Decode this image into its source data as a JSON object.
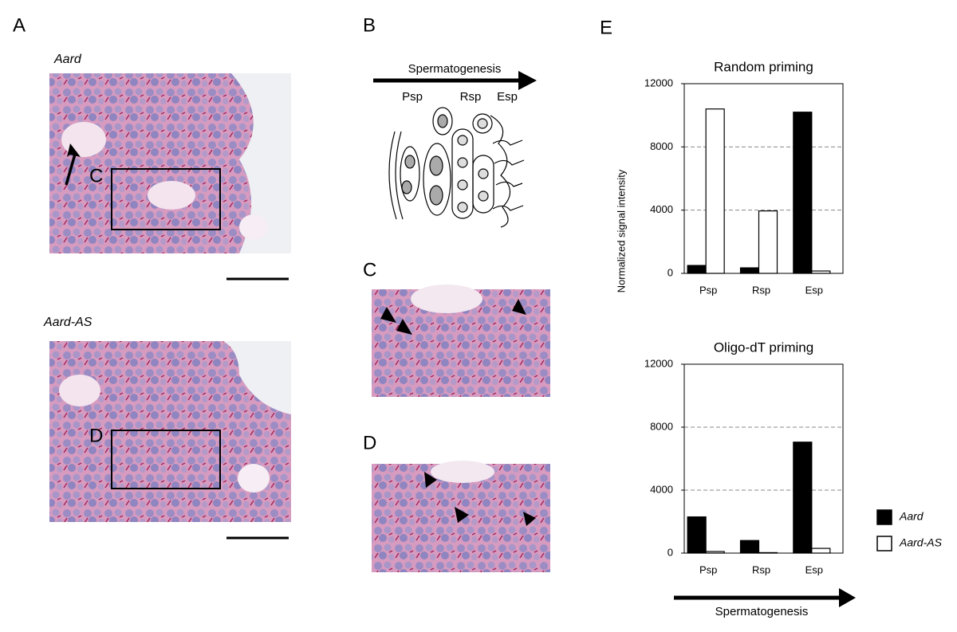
{
  "figure": {
    "panel_a": {
      "label": "A",
      "top_title": "Aard",
      "bottom_title": "Aard-AS",
      "inset_c": "C",
      "inset_d": "D"
    },
    "panel_b": {
      "label": "B",
      "arrow": "Spermatogenesis",
      "stages": [
        "Psp",
        "Rsp",
        "Esp"
      ]
    },
    "panel_c": {
      "label": "C"
    },
    "panel_d": {
      "label": "D"
    },
    "panel_e": {
      "label": "E"
    }
  },
  "chart_data": [
    {
      "type": "bar",
      "title": "Random priming",
      "ylabel": "Normalized signal intensity",
      "categories": [
        "Psp",
        "Rsp",
        "Esp"
      ],
      "series": [
        {
          "name": "Aard",
          "color": "#000000",
          "values": [
            500,
            350,
            10200
          ]
        },
        {
          "name": "Aard-AS",
          "color": "#ffffff",
          "values": [
            10400,
            3950,
            150
          ]
        }
      ],
      "ylim": [
        0,
        12000
      ],
      "yticks": [
        0,
        4000,
        8000,
        12000
      ],
      "grid": true
    },
    {
      "type": "bar",
      "title": "Oligo-dT priming",
      "annotation": "Spermatogenesis",
      "categories": [
        "Psp",
        "Rsp",
        "Esp"
      ],
      "series": [
        {
          "name": "Aard",
          "color": "#000000",
          "values": [
            2300,
            800,
            7050
          ]
        },
        {
          "name": "Aard-AS",
          "color": "#ffffff",
          "values": [
            100,
            30,
            300
          ]
        }
      ],
      "ylim": [
        0,
        12000
      ],
      "yticks": [
        0,
        4000,
        8000,
        12000
      ],
      "grid": true,
      "legend": "right"
    }
  ]
}
